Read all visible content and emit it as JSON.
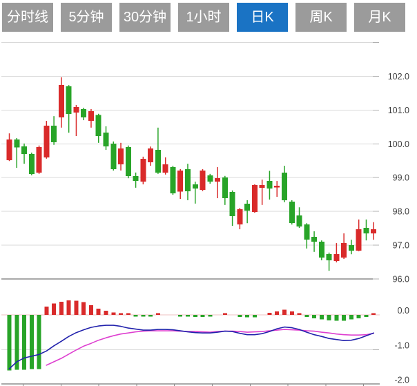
{
  "tab_bar": {
    "items": [
      {
        "label": "分时线",
        "active": false
      },
      {
        "label": "5分钟",
        "active": false
      },
      {
        "label": "30分钟",
        "active": false
      },
      {
        "label": "1小时",
        "active": false
      },
      {
        "label": "日K",
        "active": true
      },
      {
        "label": "周K",
        "active": false
      },
      {
        "label": "月K",
        "active": false
      }
    ]
  },
  "colors": {
    "tab_inactive_bg": "#9b9b9b",
    "tab_active_bg": "#1a73c4",
    "tab_text": "#ffffff",
    "candle_up_red": "#d92a2a",
    "candle_down_green": "#28a428",
    "dif_line_blue": "#2121ac",
    "dea_line_magenta": "#de3fd0",
    "gridline": "#d9d9d9",
    "axis_line": "#a9a9a9",
    "axis_tick": "#b0b0b0",
    "zero_line_pink": "#efc2c2",
    "axis_label_text": "#3f3f3f"
  },
  "chart_data": [
    {
      "type": "candlestick",
      "panel": "price",
      "y_axis": {
        "position": "right",
        "tick_labels": [
          "102.0",
          "101.0",
          "100.0",
          "99.0",
          "98.0",
          "97.0",
          "96.0"
        ],
        "tick_values": [
          102.0,
          101.0,
          100.0,
          99.0,
          98.0,
          97.0,
          96.0
        ],
        "ylim": [
          96.0,
          103.0
        ],
        "grid": true
      },
      "num_candles": 50,
      "candles_ohlc_order": [
        "open",
        "high",
        "low",
        "close"
      ],
      "up_means": "close >= open (red)",
      "candles": [
        [
          99.52,
          100.31,
          99.49,
          100.13
        ],
        [
          100.13,
          100.17,
          99.29,
          99.89
        ],
        [
          99.92,
          100.01,
          99.41,
          99.7
        ],
        [
          99.7,
          99.74,
          99.07,
          99.11
        ],
        [
          99.15,
          99.95,
          99.11,
          99.9
        ],
        [
          99.6,
          100.68,
          99.56,
          100.54
        ],
        [
          100.54,
          100.82,
          99.97,
          100.05
        ],
        [
          100.78,
          101.97,
          100.48,
          101.74
        ],
        [
          101.7,
          101.74,
          100.33,
          100.89
        ],
        [
          100.93,
          101.15,
          100.23,
          101.09
        ],
        [
          101.03,
          101.07,
          100.7,
          100.78
        ],
        [
          100.68,
          101.03,
          100.48,
          100.97
        ],
        [
          100.85,
          100.89,
          100.03,
          100.23
        ],
        [
          100.33,
          100.52,
          99.82,
          99.92
        ],
        [
          100.01,
          100.07,
          99.21,
          99.25
        ],
        [
          99.39,
          100.03,
          99.21,
          99.86
        ],
        [
          99.9,
          99.95,
          98.98,
          99.05
        ],
        [
          99.05,
          99.15,
          98.7,
          98.9
        ],
        [
          98.88,
          99.62,
          98.8,
          99.56
        ],
        [
          99.45,
          99.92,
          99.35,
          99.86
        ],
        [
          99.82,
          100.48,
          99.11,
          99.15
        ],
        [
          99.15,
          99.6,
          99.09,
          99.39
        ],
        [
          99.31,
          99.35,
          98.49,
          98.53
        ],
        [
          98.58,
          99.25,
          98.37,
          99.21
        ],
        [
          99.25,
          99.41,
          98.33,
          98.6
        ],
        [
          98.8,
          98.88,
          98.23,
          98.68
        ],
        [
          98.64,
          99.25,
          98.6,
          99.21
        ],
        [
          99.07,
          99.11,
          98.82,
          98.88
        ],
        [
          98.88,
          99.31,
          98.39,
          98.98
        ],
        [
          99.0,
          99.05,
          98.19,
          98.39
        ],
        [
          98.57,
          98.62,
          97.57,
          97.86
        ],
        [
          97.61,
          98.1,
          97.47,
          98.06
        ],
        [
          98.23,
          98.33,
          97.65,
          98.02
        ],
        [
          97.98,
          98.8,
          97.96,
          98.78
        ],
        [
          98.7,
          98.94,
          98.19,
          98.78
        ],
        [
          98.9,
          99.2,
          98.35,
          98.68
        ],
        [
          98.72,
          98.9,
          98.43,
          98.76
        ],
        [
          99.15,
          99.35,
          98.27,
          98.33
        ],
        [
          98.29,
          98.33,
          97.61,
          97.65
        ],
        [
          97.88,
          98.12,
          97.51,
          97.55
        ],
        [
          97.61,
          97.65,
          96.9,
          97.16
        ],
        [
          97.25,
          97.41,
          96.8,
          97.1
        ],
        [
          97.1,
          97.14,
          96.55,
          96.63
        ],
        [
          96.73,
          96.78,
          96.24,
          96.55
        ],
        [
          96.53,
          97.06,
          96.49,
          96.73
        ],
        [
          96.63,
          97.35,
          96.59,
          97.06
        ],
        [
          97.0,
          97.16,
          96.73,
          96.84
        ],
        [
          96.84,
          97.76,
          96.82,
          97.47
        ],
        [
          97.51,
          97.76,
          97.14,
          97.35
        ],
        [
          97.35,
          97.68,
          97.16,
          97.47
        ]
      ]
    },
    {
      "type": "bar",
      "panel": "macd",
      "y_axis": {
        "position": "right",
        "tick_labels": [
          "0.0",
          "-1.0",
          "-2.0"
        ],
        "tick_values": [
          0.0,
          -1.0,
          -2.0
        ],
        "ylim": [
          -2.1,
          0.6
        ],
        "grid": true
      },
      "series": [
        {
          "name": "macd-histogram",
          "type": "bar",
          "positive_color": "#d92a2a",
          "negative_color": "#28a428",
          "values": [
            -1.6,
            -1.58,
            -1.58,
            -1.56,
            -1.56,
            0.24,
            0.33,
            0.38,
            0.42,
            0.41,
            0.37,
            0.28,
            0.18,
            0.12,
            0.07,
            0.05,
            0.03,
            -0.04,
            -0.04,
            -0.05,
            0.02,
            0,
            0,
            -0.05,
            -0.05,
            -0.06,
            -0.06,
            -0.05,
            0,
            0.03,
            0,
            -0.06,
            -0.07,
            -0.07,
            0,
            0.06,
            0.1,
            0.15,
            0.1,
            0.03,
            -0.06,
            -0.1,
            -0.13,
            -0.16,
            -0.17,
            -0.17,
            -0.13,
            -0.1,
            -0.06,
            0.05
          ]
        },
        {
          "name": "dif-line",
          "type": "line",
          "color": "#2121ac",
          "values": [
            -1.55,
            -1.35,
            -1.24,
            -1.19,
            -1.14,
            -1.04,
            -0.89,
            -0.76,
            -0.62,
            -0.51,
            -0.43,
            -0.36,
            -0.32,
            -0.3,
            -0.3,
            -0.33,
            -0.38,
            -0.41,
            -0.44,
            -0.44,
            -0.42,
            -0.42,
            -0.43,
            -0.46,
            -0.49,
            -0.51,
            -0.52,
            -0.52,
            -0.5,
            -0.47,
            -0.48,
            -0.53,
            -0.57,
            -0.57,
            -0.54,
            -0.48,
            -0.4,
            -0.35,
            -0.37,
            -0.42,
            -0.5,
            -0.57,
            -0.62,
            -0.68,
            -0.71,
            -0.74,
            -0.73,
            -0.68,
            -0.6,
            -0.52
          ]
        },
        {
          "name": "dea-line",
          "type": "line",
          "color": "#de3fd0",
          "values": [
            null,
            null,
            null,
            null,
            null,
            -1.45,
            -1.35,
            -1.25,
            -1.13,
            -1.01,
            -0.9,
            -0.82,
            -0.73,
            -0.66,
            -0.6,
            -0.55,
            -0.52,
            -0.49,
            -0.47,
            -0.46,
            -0.46,
            -0.46,
            -0.46,
            -0.47,
            -0.48,
            -0.48,
            -0.49,
            -0.5,
            -0.48,
            -0.47,
            -0.47,
            -0.48,
            -0.5,
            -0.49,
            -0.48,
            -0.46,
            -0.44,
            -0.42,
            -0.43,
            -0.44,
            -0.46,
            -0.47,
            -0.5,
            -0.52,
            -0.55,
            -0.57,
            -0.58,
            -0.58,
            -0.57,
            -0.53
          ]
        }
      ]
    }
  ]
}
